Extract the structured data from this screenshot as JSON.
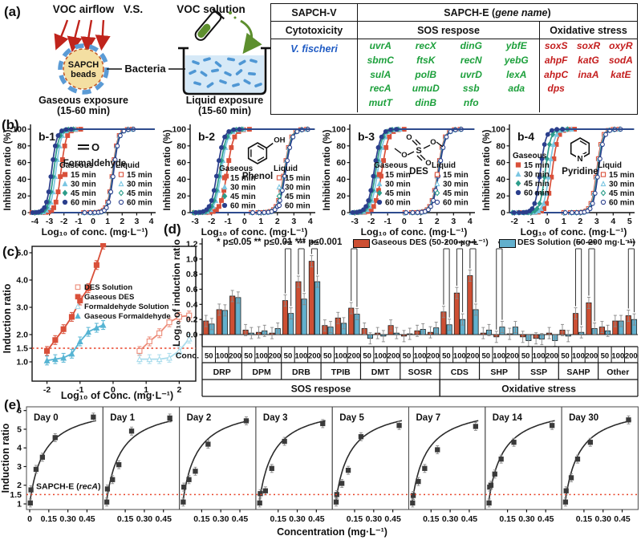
{
  "panel_a": {
    "label": "(a)",
    "voc_airflow": "VOC airflow",
    "vs": "V.S.",
    "voc_solution": "VOC solution",
    "bead_line1": "SAPCH",
    "bead_line2": "beads",
    "bacteria": "Bacteria",
    "gaseous_caption1": "Gaseous exposure",
    "gaseous_caption2": "(15-60 min)",
    "liquid_caption1": "Liquid exposure",
    "liquid_caption2": "(15-60 min)",
    "colors": {
      "airflow_red": "#c0241c",
      "solution_green": "#55802b",
      "bacteria_blue": "#4a90d9",
      "water": "#d6e9f7",
      "bead_fill": "#f4dfa2"
    },
    "table": {
      "header_left": "SAPCH-V",
      "header_right_pre": "SAPCH-E (",
      "header_right_italic": "gene name",
      "header_right_post": ")",
      "sub_left": "Cytotoxicity",
      "sub_mid": "SOS respose",
      "sub_right": "Oxidative stress",
      "organism": "V. fischeri",
      "organism_blue": "#1f5bc4",
      "gene_green": "#1da03c",
      "gene_red": "#c41e1e",
      "sos_genes": [
        [
          "uvrA",
          "recX",
          "dinG",
          "ybfE"
        ],
        [
          "sbmC",
          "ftsK",
          "recN",
          "yebG"
        ],
        [
          "sulA",
          "polB",
          "uvrD",
          "lexA"
        ],
        [
          "recA",
          "umuD",
          "ssb",
          "ada"
        ],
        [
          "mutT",
          "dinB",
          "nfo",
          ""
        ]
      ],
      "ox_genes": [
        [
          "soxS",
          "soxR",
          "oxyR"
        ],
        [
          "ahpF",
          "katG",
          "sodA"
        ],
        [
          "ahpC",
          "inaA",
          "katE"
        ],
        [
          "dps",
          "",
          ""
        ]
      ]
    }
  },
  "panel_b": {
    "label": "(b)",
    "type": "line",
    "ylabel": "Inhibition ratio (%)",
    "xlabel": "Log₁₀ of conc. (mg·L⁻¹)",
    "yticks": [
      0,
      20,
      40,
      60,
      80,
      100
    ],
    "legend_gaseous": "Gaseous",
    "legend_liquid": "Liquid",
    "times": [
      "15 min",
      "30 min",
      "45 min",
      "60 min"
    ],
    "time_colors": [
      "#d9503a",
      "#7bc6e2",
      "#2d9d8a",
      "#2b3f8c"
    ],
    "marker_shapes": [
      "square",
      "triangle",
      "diamond",
      "circle"
    ],
    "charts": [
      {
        "id": "b-1",
        "name": "Formaldehyde",
        "xmin": -4.3,
        "xmax": 4.3,
        "xticks": [
          -4,
          -3,
          -2,
          -1,
          0,
          1,
          2,
          3,
          4
        ],
        "gaseous_ec50": [
          -2.2,
          -2.55,
          -2.7,
          -2.85
        ],
        "liquid_ec50": [
          1.35,
          1.38,
          1.4,
          1.42
        ],
        "hill": 2.4
      },
      {
        "id": "b-2",
        "name": "Phenol",
        "xmin": -3.3,
        "xmax": 4.3,
        "xticks": [
          -3,
          -2,
          -1,
          0,
          1,
          2,
          3,
          4
        ],
        "gaseous_ec50": [
          -1.05,
          -1.4,
          -1.5,
          -1.65
        ],
        "liquid_ec50": [
          2.42,
          2.45,
          2.47,
          2.5
        ],
        "hill": 2.2
      },
      {
        "id": "b-3",
        "name": "DES",
        "xmin": -3.3,
        "xmax": 4.3,
        "xticks": [
          -3,
          -2,
          -1,
          0,
          1,
          2,
          3,
          4
        ],
        "gaseous_ec50": [
          -1.35,
          -1.6,
          -1.72,
          -1.82
        ],
        "liquid_ec50": [
          2.05,
          2.08,
          2.1,
          2.12
        ],
        "hill": 2.2
      },
      {
        "id": "b-4",
        "name": "Pyridine",
        "xmin": -2.3,
        "xmax": 5.3,
        "xticks": [
          -2,
          -1,
          0,
          1,
          2,
          3,
          4,
          5
        ],
        "gaseous_ec50": [
          0.3,
          0.12,
          -0.12,
          -0.42
        ],
        "liquid_ec50": [
          3.0,
          3.04,
          3.07,
          3.1
        ],
        "hill": 2.6
      }
    ]
  },
  "panel_c": {
    "label": "(c)",
    "type": "scatter",
    "ylabel": "Induction ratio",
    "xlabel": "Log₁₀ of Conc. (mg·L⁻¹)",
    "yticks": [
      1.0,
      1.5,
      2.0,
      3.0,
      4.0,
      5.0
    ],
    "xticks": [
      -2,
      -1,
      0,
      1,
      2
    ],
    "threshold": 1.5,
    "threshold_color": "#e8442a",
    "series": [
      {
        "name": "DES Solution",
        "color": "#ec8a77",
        "marker": "square",
        "filled": false,
        "points": [
          [
            0.8,
            1.4
          ],
          [
            1.1,
            1.75
          ],
          [
            1.4,
            2.05
          ],
          [
            1.7,
            2.45
          ],
          [
            2.0,
            2.65
          ],
          [
            2.3,
            2.7
          ]
        ]
      },
      {
        "name": "Gaseous DES",
        "color": "#d9503a",
        "marker": "square",
        "filled": true,
        "points": [
          [
            -2.0,
            1.4
          ],
          [
            -1.75,
            1.8
          ],
          [
            -1.5,
            2.2
          ],
          [
            -1.25,
            2.65
          ],
          [
            -1.0,
            3.25
          ],
          [
            -0.75,
            3.7
          ],
          [
            -0.5,
            4.55
          ],
          [
            -0.3,
            5.3
          ]
        ]
      },
      {
        "name": "Formaldehyde Solution",
        "color": "#a9dcec",
        "marker": "triangle",
        "filled": false,
        "points": [
          [
            0.8,
            1.1
          ],
          [
            1.1,
            1.1
          ],
          [
            1.4,
            1.1
          ],
          [
            1.7,
            1.15
          ],
          [
            2.0,
            1.4
          ],
          [
            2.3,
            1.85
          ]
        ]
      },
      {
        "name": "Gaseous Formaldehyde",
        "color": "#56b4d3",
        "marker": "triangle",
        "filled": true,
        "points": [
          [
            -2.0,
            1.05
          ],
          [
            -1.75,
            1.1
          ],
          [
            -1.5,
            1.15
          ],
          [
            -1.25,
            1.3
          ],
          [
            -1.0,
            1.75
          ],
          [
            -0.75,
            2.1
          ],
          [
            -0.5,
            2.25
          ],
          [
            -0.3,
            2.35
          ]
        ]
      }
    ]
  },
  "panel_d": {
    "label": "(d)",
    "type": "bar",
    "ylabel": "Log₁₀ of induction ratio",
    "sig_note": "* p≤0.05  ** p≤0.01  *** p≤0.001",
    "legend": [
      {
        "label": "Gaseous DES (50-200 µg·L⁻¹)",
        "color": "#cd4f33"
      },
      {
        "label": "DES Solution (50-200 mg·L⁻¹)",
        "color": "#62b0cd"
      }
    ],
    "yticks": [
      0.0,
      0.2,
      0.4,
      0.6,
      0.8,
      1.0,
      1.2
    ],
    "conc_label": "Conc.",
    "conc_ticks": [
      "50",
      "100",
      "200"
    ],
    "groups": [
      "DRP",
      "DPM",
      "DRB",
      "TPIB",
      "DMT",
      "SOSR",
      "CDS",
      "SHP",
      "SSP",
      "SAHP",
      "Other"
    ],
    "categories": [
      {
        "label": "SOS respose",
        "from": 0,
        "to": 5
      },
      {
        "label": "Oxidative stress",
        "from": 6,
        "to": 10
      }
    ],
    "gaseous": [
      [
        0.18,
        0.33,
        0.51
      ],
      [
        0.06,
        0.03,
        0.02
      ],
      [
        0.45,
        0.7,
        0.97
      ],
      [
        0.12,
        0.22,
        0.35
      ],
      [
        0.08,
        0.02,
        0.12
      ],
      [
        -0.02,
        0.05,
        0.03
      ],
      [
        0.3,
        0.55,
        0.78
      ],
      [
        0.02,
        -0.03,
        0.01
      ],
      [
        -0.03,
        -0.05,
        0.02
      ],
      [
        0.06,
        0.28,
        0.42
      ],
      [
        0.1,
        0.18,
        0.25
      ]
    ],
    "solution": [
      [
        0.14,
        0.32,
        0.49
      ],
      [
        0.02,
        0.05,
        0.08
      ],
      [
        0.28,
        0.47,
        0.7
      ],
      [
        0.1,
        0.15,
        0.27
      ],
      [
        -0.05,
        -0.02,
        0.02
      ],
      [
        0.01,
        0.07,
        0.09
      ],
      [
        0.13,
        0.2,
        0.33
      ],
      [
        0.06,
        0.1,
        0.1
      ],
      [
        -0.08,
        -0.06,
        -0.08
      ],
      [
        -0.02,
        0.03,
        0.08
      ],
      [
        0.05,
        0.18,
        0.2
      ]
    ],
    "significance": [
      {
        "group": 2,
        "conc": 0,
        "stars": "***"
      },
      {
        "group": 2,
        "conc": 1,
        "stars": "***"
      },
      {
        "group": 2,
        "conc": 2,
        "stars": "***"
      },
      {
        "group": 3,
        "conc": 2,
        "stars": "*"
      },
      {
        "group": 6,
        "conc": 0,
        "stars": "*"
      },
      {
        "group": 6,
        "conc": 1,
        "stars": "***"
      },
      {
        "group": 6,
        "conc": 2,
        "stars": "***"
      },
      {
        "group": 7,
        "conc": 1,
        "stars": "*"
      },
      {
        "group": 9,
        "conc": 1,
        "stars": "**"
      },
      {
        "group": 9,
        "conc": 2,
        "stars": "***"
      },
      {
        "group": 10,
        "conc": 2,
        "stars": "***"
      }
    ]
  },
  "panel_e": {
    "label": "(e)",
    "type": "line",
    "ylabel": "Induction ratio",
    "xlabel": "Concentration (mg·L⁻¹)",
    "yticks": [
      1,
      2,
      3,
      4,
      5,
      6
    ],
    "threshold": 1.5,
    "threshold_label": "1.5",
    "threshold_color": "#e8442a",
    "xtick_zero": "0",
    "xticks": [
      "0.15",
      "0.30",
      "0.45"
    ],
    "annotation_pre": "SAPCH-E (",
    "annotation_italic": "recA",
    "annotation_post": ")",
    "fit": {
      "vmax": 6.4,
      "k": 0.11
    },
    "days": [
      {
        "label": "Day 0",
        "points": [
          [
            0.005,
            1.05
          ],
          [
            0.01,
            1.75
          ],
          [
            0.05,
            2.85
          ],
          [
            0.1,
            3.5
          ],
          [
            0.2,
            4.55
          ],
          [
            0.5,
            5.65
          ]
        ]
      },
      {
        "label": "Day 1",
        "points": [
          [
            0.005,
            1.1
          ],
          [
            0.01,
            1.8
          ],
          [
            0.05,
            2.3
          ],
          [
            0.1,
            3.1
          ],
          [
            0.2,
            4.9
          ],
          [
            0.5,
            5.6
          ]
        ]
      },
      {
        "label": "Day 2",
        "points": [
          [
            0.005,
            1.1
          ],
          [
            0.01,
            1.9
          ],
          [
            0.05,
            2.3
          ],
          [
            0.1,
            2.75
          ],
          [
            0.2,
            4.2
          ],
          [
            0.5,
            5.45
          ]
        ]
      },
      {
        "label": "Day 3",
        "points": [
          [
            0.005,
            1.05
          ],
          [
            0.01,
            1.55
          ],
          [
            0.05,
            1.7
          ],
          [
            0.1,
            2.9
          ],
          [
            0.2,
            4.35
          ],
          [
            0.5,
            5.3
          ]
        ]
      },
      {
        "label": "Day 5",
        "points": [
          [
            0.005,
            1.1
          ],
          [
            0.01,
            1.5
          ],
          [
            0.05,
            2.1
          ],
          [
            0.1,
            2.8
          ],
          [
            0.2,
            4.6
          ],
          [
            0.5,
            5.2
          ]
        ]
      },
      {
        "label": "Day 7",
        "points": [
          [
            0.005,
            1.05
          ],
          [
            0.01,
            1.45
          ],
          [
            0.05,
            2.2
          ],
          [
            0.1,
            2.9
          ],
          [
            0.2,
            3.9
          ],
          [
            0.5,
            5.15
          ]
        ]
      },
      {
        "label": "Day 14",
        "points": [
          [
            0.005,
            1.05
          ],
          [
            0.01,
            1.9
          ],
          [
            0.02,
            2.0
          ],
          [
            0.05,
            2.6
          ],
          [
            0.1,
            3.4
          ],
          [
            0.2,
            4.3
          ],
          [
            0.5,
            5.2
          ]
        ]
      },
      {
        "label": "Day 30",
        "points": [
          [
            0.005,
            1.1
          ],
          [
            0.01,
            1.7
          ],
          [
            0.05,
            2.4
          ],
          [
            0.1,
            3.4
          ],
          [
            0.2,
            4.3
          ],
          [
            0.5,
            5.5
          ]
        ]
      }
    ]
  }
}
